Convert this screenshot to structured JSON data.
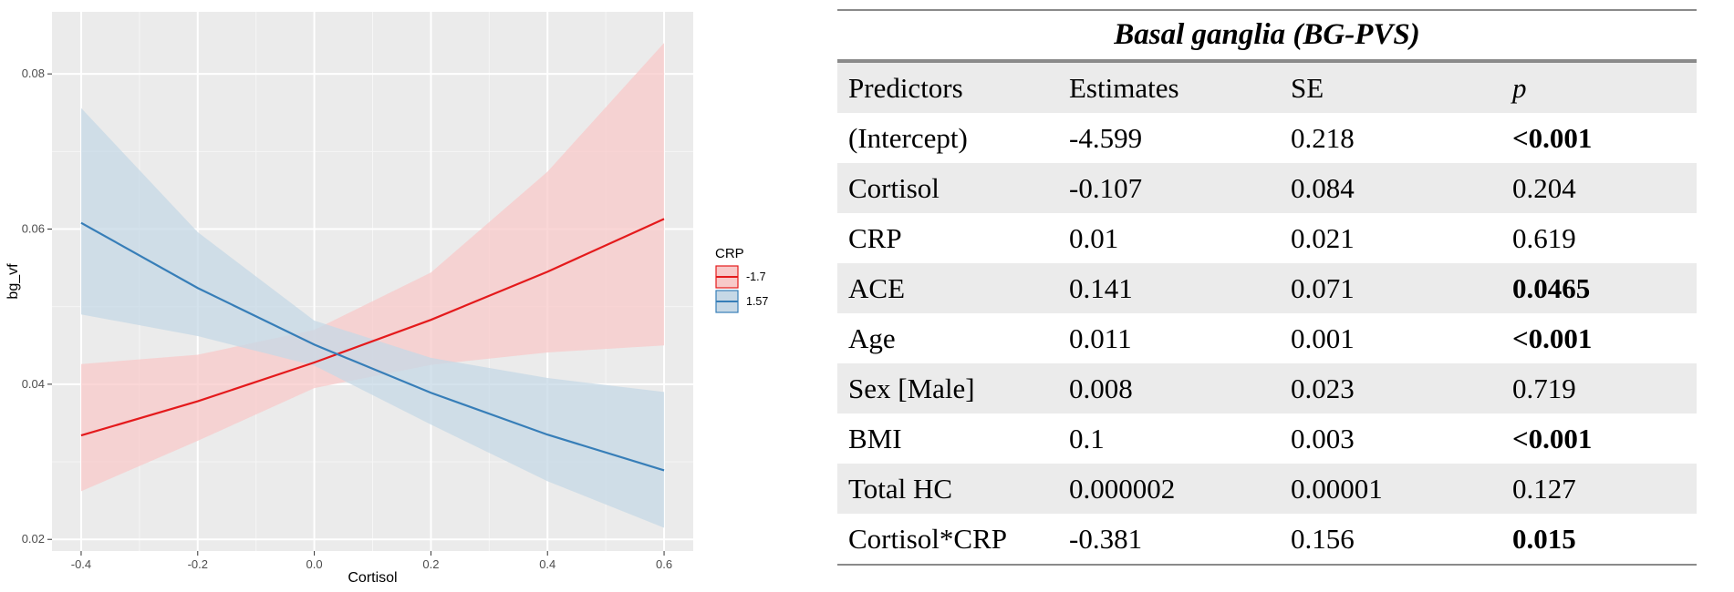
{
  "colors": {
    "series_neg": "#e41a1c",
    "series_pos": "#377eb8",
    "panel_bg": "#ebebeb"
  },
  "chart_data": {
    "type": "line",
    "xlabel": "Cortisol",
    "ylabel": "bg_vf",
    "xlim": [
      -0.45,
      0.65
    ],
    "ylim": [
      0.0185,
      0.088
    ],
    "x_ticks": [
      -0.4,
      -0.2,
      0.0,
      0.2,
      0.4,
      0.6
    ],
    "x_tick_labels": [
      "-0.4",
      "-0.2",
      "0.0",
      "0.2",
      "0.4",
      "0.6"
    ],
    "y_ticks": [
      0.02,
      0.04,
      0.06,
      0.08
    ],
    "y_tick_labels": [
      "0.02",
      "0.04",
      "0.06",
      "0.08"
    ],
    "legend_title": "CRP",
    "legend_position": "right",
    "series": [
      {
        "name": "-1.7",
        "color": "#e41a1c",
        "fill": "#f8c9c9",
        "x": [
          -0.4,
          -0.2,
          0.0,
          0.2,
          0.4,
          0.6
        ],
        "y": [
          0.0334,
          0.0378,
          0.0428,
          0.0483,
          0.0545,
          0.0613
        ],
        "lower": [
          0.0262,
          0.0327,
          0.0395,
          0.0425,
          0.0441,
          0.045
        ],
        "upper": [
          0.0426,
          0.0438,
          0.047,
          0.0544,
          0.0674,
          0.084
        ]
      },
      {
        "name": "1.57",
        "color": "#377eb8",
        "fill": "#c6d8e6",
        "x": [
          -0.4,
          -0.2,
          0.0,
          0.2,
          0.4,
          0.6
        ],
        "y": [
          0.0608,
          0.0524,
          0.0451,
          0.0389,
          0.0335,
          0.0289
        ],
        "lower": [
          0.049,
          0.0462,
          0.0424,
          0.0348,
          0.0275,
          0.0215
        ],
        "upper": [
          0.0756,
          0.0596,
          0.0482,
          0.0434,
          0.0408,
          0.039
        ]
      }
    ]
  },
  "table": {
    "title": "Basal ganglia (BG-PVS)",
    "headers": [
      "Predictors",
      "Estimates",
      "SE",
      "p"
    ],
    "rows": [
      {
        "predictor": "(Intercept)",
        "estimate": "-4.599",
        "se": "0.218",
        "p": "<0.001",
        "sig": true
      },
      {
        "predictor": "Cortisol",
        "estimate": "-0.107",
        "se": "0.084",
        "p": "0.204",
        "sig": false
      },
      {
        "predictor": "CRP",
        "estimate": "0.01",
        "se": "0.021",
        "p": "0.619",
        "sig": false
      },
      {
        "predictor": "ACE",
        "estimate": "0.141",
        "se": "0.071",
        "p": "0.0465",
        "sig": true
      },
      {
        "predictor": "Age",
        "estimate": "0.011",
        "se": "0.001",
        "p": "<0.001",
        "sig": true
      },
      {
        "predictor": "Sex [Male]",
        "estimate": "0.008",
        "se": "0.023",
        "p": "0.719",
        "sig": false
      },
      {
        "predictor": "BMI",
        "estimate": "0.1",
        "se": "0.003",
        "p": "<0.001",
        "sig": true
      },
      {
        "predictor": "Total HC",
        "estimate": "0.000002",
        "se": "0.00001",
        "p": "0.127",
        "sig": false
      },
      {
        "predictor": "Cortisol*CRP",
        "estimate": "-0.381",
        "se": "0.156",
        "p": "0.015",
        "sig": true
      }
    ]
  }
}
